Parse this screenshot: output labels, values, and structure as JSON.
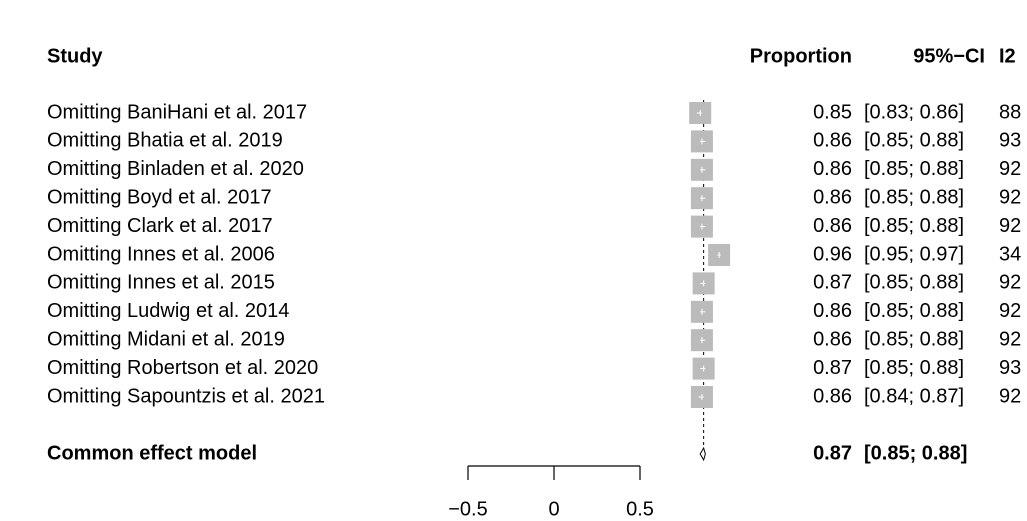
{
  "chart_data": {
    "type": "forest",
    "columns": {
      "study": "Study",
      "proportion": "Proportion",
      "ci": "95%−CI",
      "i2": "I2"
    },
    "categories": [
      "Omitting BaniHani et al. 2017",
      "Omitting Bhatia et al. 2019",
      "Omitting Binladen et al. 2020",
      "Omitting Boyd et al. 2017",
      "Omitting Clark et al. 2017",
      "Omitting Innes et al. 2006",
      "Omitting Innes et al. 2015",
      "Omitting Ludwig et al. 2014",
      "Omitting Midani et al. 2019",
      "Omitting Robertson et al. 2020",
      "Omitting Sapountzis et al. 2021"
    ],
    "values": [
      0.85,
      0.86,
      0.86,
      0.86,
      0.86,
      0.96,
      0.87,
      0.86,
      0.86,
      0.87,
      0.86
    ],
    "lower": [
      0.83,
      0.85,
      0.85,
      0.85,
      0.85,
      0.95,
      0.85,
      0.85,
      0.85,
      0.85,
      0.84
    ],
    "upper": [
      0.86,
      0.88,
      0.88,
      0.88,
      0.88,
      0.97,
      0.88,
      0.88,
      0.88,
      0.88,
      0.87
    ],
    "ci_labels": [
      "[0.83; 0.86]",
      "[0.85; 0.88]",
      "[0.85; 0.88]",
      "[0.85; 0.88]",
      "[0.85; 0.88]",
      "[0.95; 0.97]",
      "[0.85; 0.88]",
      "[0.85; 0.88]",
      "[0.85; 0.88]",
      "[0.85; 0.88]",
      "[0.84; 0.87]"
    ],
    "i2": [
      88,
      93,
      92,
      92,
      92,
      34,
      92,
      92,
      92,
      93,
      92
    ],
    "common": {
      "label": "Common effect model",
      "value": 0.87,
      "lower": 0.85,
      "upper": 0.88,
      "ci_label": "[0.85; 0.88]"
    },
    "color": "#bbbbbb",
    "xlim": [
      -0.5,
      0.5
    ],
    "xticks": [
      {
        "value": -0.5,
        "label": "−0.5"
      },
      0,
      0.5
    ]
  }
}
